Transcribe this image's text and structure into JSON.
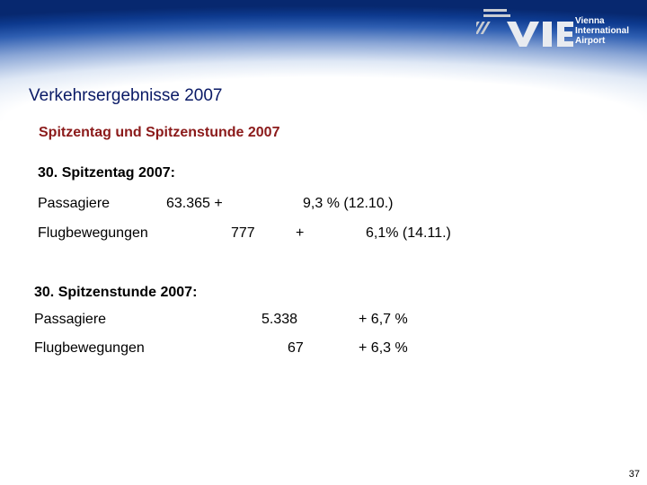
{
  "logo": {
    "line1": "Vienna",
    "line2": "International",
    "line3": "Airport"
  },
  "title": "Verkehrsergebnisse 2007",
  "subtitle": "Spitzentag und Spitzenstunde 2007",
  "peak_day": {
    "heading": "30. Spitzentag 2007:",
    "rows": [
      {
        "label": "Passagiere",
        "value": "63.365  +",
        "change": "9,3 %  (12.10.)"
      },
      {
        "label": "Flugbewegungen",
        "value": "777",
        "plus": "+",
        "change": "6,1% (14.11.)"
      }
    ]
  },
  "peak_hour": {
    "heading": "30. Spitzenstunde 2007:",
    "rows": [
      {
        "label": "Passagiere",
        "value": "5.338",
        "change": "+ 6,7 %"
      },
      {
        "label": "Flugbewegungen",
        "value": "67",
        "change": "+ 6,3 %"
      }
    ]
  },
  "page_number": "37",
  "colors": {
    "title": "#0a1a66",
    "subtitle": "#8b1a1a",
    "header_dark": "#07286f",
    "logo_stripe": "#c8ccd2"
  }
}
